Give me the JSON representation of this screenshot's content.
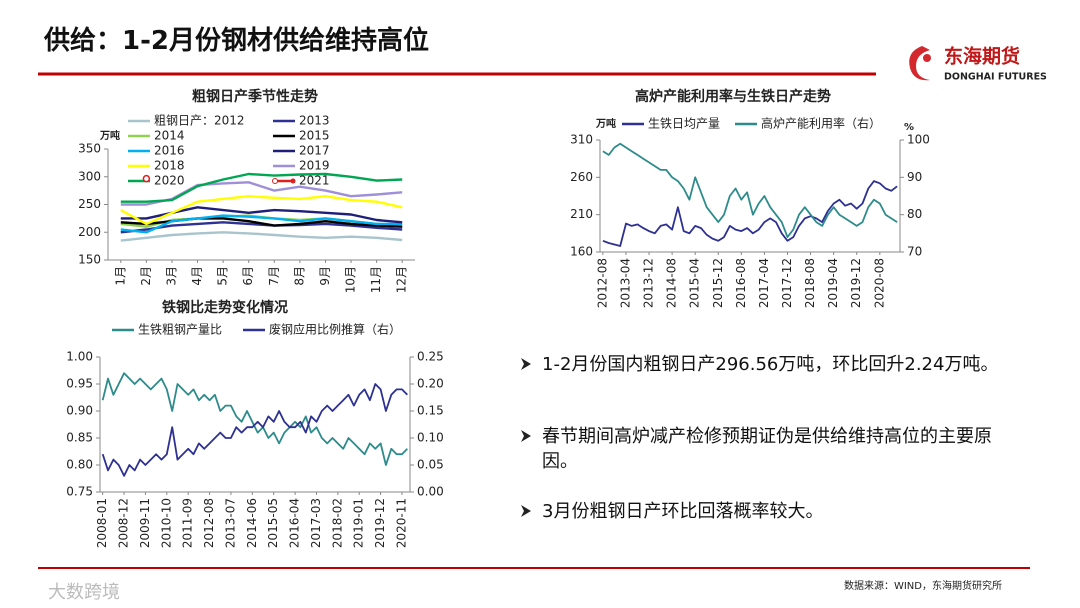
{
  "header": {
    "title": "供给：1-2月份钢材供给维持高位",
    "logo": {
      "name": "东海期货",
      "english": "DONGHAI FUTURES"
    }
  },
  "bullets": [
    "1-2月份国内粗钢日产296.56万吨，环比回升2.24万吨。",
    "春节期间高炉减产检修预期证伪是供给维持高位的主要原因。",
    "3月份粗钢日产环比回落概率较大。"
  ],
  "source": "数据来源：WIND，东海期货研究所",
  "watermark": "大数跨境",
  "chart_data": [
    {
      "type": "line",
      "title": "粗钢日产季节性走势",
      "y_unit": "万吨",
      "categories": [
        "1月",
        "2月",
        "3月",
        "4月",
        "5月",
        "6月",
        "7月",
        "8月",
        "9月",
        "10月",
        "11月",
        "12月"
      ],
      "ylim": [
        150,
        350
      ],
      "yticks": [
        150,
        200,
        250,
        300,
        350
      ],
      "series": [
        {
          "name": "粗钢日产：2012",
          "color": "#a8c4cc",
          "values": [
            185,
            190,
            195,
            198,
            200,
            198,
            195,
            192,
            190,
            192,
            190,
            186
          ]
        },
        {
          "name": "2013",
          "color": "#2e3192",
          "values": [
            200,
            205,
            212,
            215,
            218,
            215,
            212,
            213,
            215,
            212,
            208,
            205
          ]
        },
        {
          "name": "2014",
          "color": "#92d050",
          "values": [
            215,
            210,
            222,
            225,
            228,
            230,
            225,
            222,
            225,
            220,
            215,
            210
          ]
        },
        {
          "name": "2015",
          "color": "#000000",
          "values": [
            218,
            215,
            220,
            225,
            225,
            220,
            212,
            215,
            220,
            215,
            212,
            210
          ]
        },
        {
          "name": "2016",
          "color": "#00b0f0",
          "values": [
            205,
            200,
            220,
            225,
            230,
            228,
            225,
            220,
            225,
            220,
            215,
            215
          ]
        },
        {
          "name": "2017",
          "color": "#1f1f7a",
          "values": [
            225,
            225,
            235,
            245,
            240,
            235,
            240,
            238,
            235,
            232,
            222,
            218
          ]
        },
        {
          "name": "2018",
          "color": "#ffff00",
          "values": [
            240,
            215,
            235,
            255,
            260,
            265,
            262,
            260,
            265,
            258,
            255,
            245
          ]
        },
        {
          "name": "2019",
          "color": "#9e8fd8",
          "values": [
            250,
            250,
            260,
            285,
            288,
            290,
            275,
            282,
            275,
            265,
            268,
            272
          ]
        },
        {
          "name": "2020",
          "color": "#00a651",
          "values": [
            255,
            255,
            258,
            283,
            295,
            305,
            302,
            304,
            305,
            300,
            293,
            295
          ]
        },
        {
          "name": "2021",
          "color": "#e01e1e",
          "marker": true,
          "values": [
            null,
            296.56,
            null,
            null,
            null,
            null,
            null,
            null,
            null,
            null,
            null,
            null
          ]
        }
      ]
    },
    {
      "type": "line",
      "title": "高炉产能利用率与生铁日产走势",
      "y_unit": "万吨",
      "y2_unit": "%",
      "categories": [
        "2012-08",
        null,
        null,
        null,
        "2013-04",
        null,
        null,
        null,
        "2013-12",
        null,
        null,
        null,
        "2014-08",
        null,
        null,
        null,
        "2015-04",
        null,
        null,
        null,
        "2015-12",
        null,
        null,
        null,
        "2016-08",
        null,
        null,
        null,
        "2017-04",
        null,
        null,
        null,
        "2017-12",
        null,
        null,
        null,
        "2018-08",
        null,
        null,
        null,
        "2019-04",
        null,
        null,
        null,
        "2019-12",
        null,
        null,
        null,
        "2020-08",
        null,
        null,
        null
      ],
      "ylim": [
        160,
        310
      ],
      "yticks": [
        160,
        210,
        260,
        310
      ],
      "y2lim": [
        70,
        100
      ],
      "y2ticks": [
        70,
        80,
        90,
        100
      ],
      "series": [
        {
          "name": "生铁日均产量",
          "color": "#2e3192",
          "values": [
            175,
            172,
            170,
            168,
            198,
            195,
            197,
            192,
            188,
            185,
            195,
            197,
            190,
            220,
            188,
            185,
            195,
            192,
            183,
            178,
            175,
            180,
            195,
            190,
            188,
            192,
            185,
            190,
            200,
            205,
            200,
            185,
            175,
            180,
            195,
            205,
            208,
            205,
            200,
            215,
            225,
            230,
            222,
            225,
            218,
            225,
            245,
            255,
            252,
            245,
            242,
            248
          ]
        },
        {
          "name": "高炉产能利用率（右）",
          "color": "#2e8b8b",
          "axis": "y2",
          "values": [
            97,
            96,
            98,
            99,
            98,
            97,
            96,
            95,
            94,
            93,
            92,
            92,
            90,
            89,
            87,
            84,
            90,
            86,
            82,
            80,
            78,
            80,
            85,
            87,
            84,
            86,
            80,
            83,
            85,
            82,
            80,
            78,
            74,
            76,
            80,
            82,
            80,
            78,
            77,
            80,
            82,
            80,
            79,
            78,
            77,
            78,
            82,
            84,
            83,
            80,
            79,
            78
          ]
        }
      ]
    },
    {
      "type": "line",
      "title": "铁钢比走势变化情况",
      "categories": [
        "2008-01",
        null,
        null,
        null,
        "2008-12",
        null,
        null,
        null,
        "2009-11",
        null,
        null,
        null,
        "2010-10",
        null,
        null,
        null,
        "2011-09",
        null,
        null,
        null,
        "2012-08",
        null,
        null,
        null,
        "2013-07",
        null,
        null,
        null,
        "2014-06",
        null,
        null,
        null,
        "2015-05",
        null,
        null,
        null,
        "2016-04",
        null,
        null,
        null,
        "2017-03",
        null,
        null,
        null,
        "2018-02",
        null,
        null,
        null,
        "2019-01",
        null,
        null,
        null,
        "2019-12",
        null,
        null,
        null,
        "2020-11",
        null
      ],
      "ylim": [
        0.75,
        1.0
      ],
      "yticks": [
        0.75,
        {
          "value": 0.8,
          "label": "0.80"
        },
        0.85,
        {
          "value": 0.9,
          "label": "0.90"
        },
        0.95,
        {
          "value": 1.0,
          "label": "1.00"
        }
      ],
      "y2lim": [
        0,
        0.25
      ],
      "y2ticks": [
        {
          "value": 0,
          "label": "0.00"
        },
        0.05,
        {
          "value": 0.1,
          "label": "0.10"
        },
        0.15,
        {
          "value": 0.2,
          "label": "0.20"
        },
        0.25
      ],
      "series": [
        {
          "name": "生铁粗钢产量比",
          "color": "#2e8b8b",
          "values": [
            0.92,
            0.96,
            0.93,
            0.95,
            0.97,
            0.96,
            0.95,
            0.96,
            0.95,
            0.94,
            0.95,
            0.96,
            0.94,
            0.9,
            0.95,
            0.94,
            0.93,
            0.94,
            0.92,
            0.93,
            0.92,
            0.93,
            0.9,
            0.91,
            0.91,
            0.89,
            0.88,
            0.9,
            0.88,
            0.86,
            0.87,
            0.85,
            0.86,
            0.84,
            0.86,
            0.87,
            0.88,
            0.87,
            0.89,
            0.86,
            0.87,
            0.85,
            0.84,
            0.85,
            0.84,
            0.83,
            0.85,
            0.84,
            0.83,
            0.82,
            0.84,
            0.83,
            0.84,
            0.8,
            0.83,
            0.82,
            0.82,
            0.83
          ]
        },
        {
          "name": "废钢应用比例推算（右）",
          "color": "#2e3192",
          "axis": "y2",
          "values": [
            0.07,
            0.04,
            0.06,
            0.05,
            0.03,
            0.05,
            0.04,
            0.06,
            0.05,
            0.06,
            0.07,
            0.06,
            0.07,
            0.12,
            0.06,
            0.07,
            0.08,
            0.07,
            0.09,
            0.08,
            0.09,
            0.1,
            0.11,
            0.1,
            0.1,
            0.12,
            0.11,
            0.12,
            0.12,
            0.13,
            0.12,
            0.14,
            0.13,
            0.15,
            0.13,
            0.12,
            0.12,
            0.13,
            0.11,
            0.14,
            0.13,
            0.15,
            0.16,
            0.15,
            0.16,
            0.17,
            0.18,
            0.16,
            0.18,
            0.19,
            0.17,
            0.2,
            0.19,
            0.15,
            0.18,
            0.19,
            0.19,
            0.18
          ]
        }
      ]
    }
  ]
}
